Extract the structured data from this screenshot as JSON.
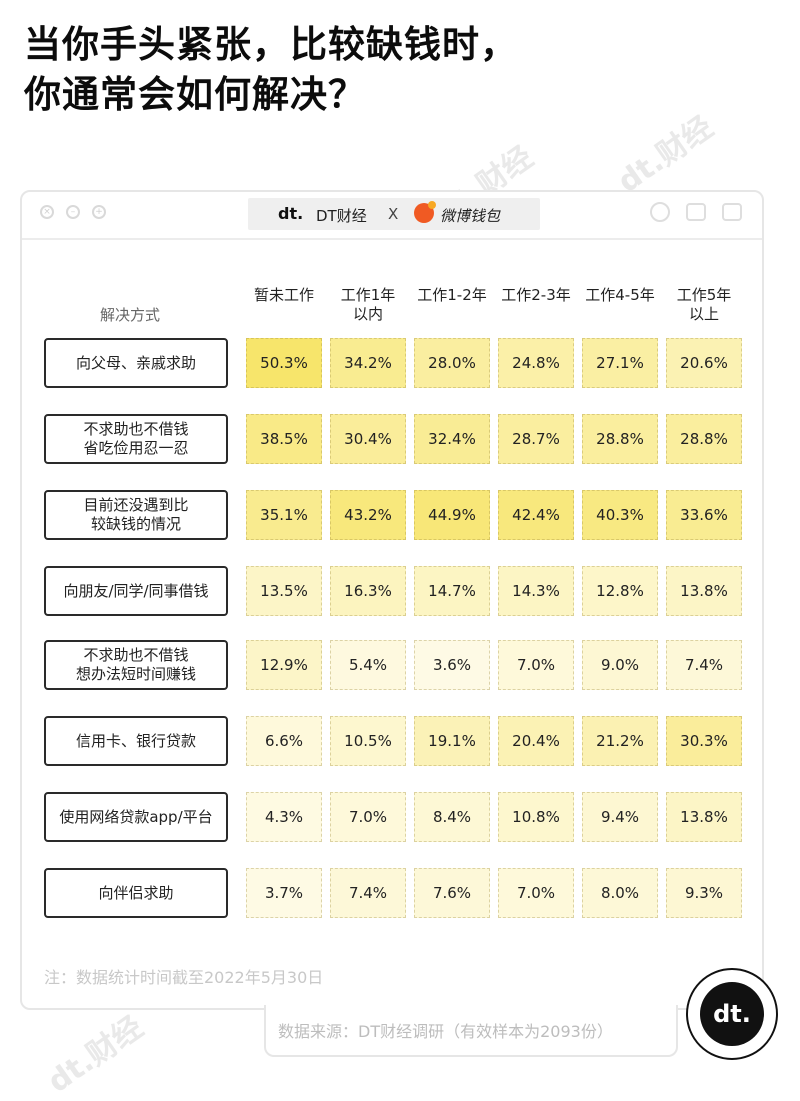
{
  "title": {
    "line1": "当你手头紧张，比较缺钱时，",
    "line2": "你通常会如何解决？"
  },
  "window": {
    "brand_dt_logo": "dt.",
    "brand_dt": "DT财经",
    "brand_x": "X",
    "brand_weibo": "微博钱包"
  },
  "watermarks": [
    "dt.财经",
    "dt.财经",
    "dt.财经",
    "dt.财经",
    "dt.财经",
    "dt.财经",
    "dt.财经",
    "dt.财经"
  ],
  "chart_data": {
    "type": "table",
    "row_header": "解决方式",
    "columns": [
      "暂未工作",
      "工作1年以内",
      "工作1-2年",
      "工作2-3年",
      "工作4-5年",
      "工作5年以上"
    ],
    "rows": [
      {
        "label": "向父母、亲戚求助",
        "values": [
          "50.3%",
          "34.2%",
          "28.0%",
          "24.8%",
          "27.1%",
          "20.6%"
        ]
      },
      {
        "label": "不求助也不借钱省吃俭用忍一忍",
        "values": [
          "38.5%",
          "30.4%",
          "32.4%",
          "28.7%",
          "28.8%",
          "28.8%"
        ]
      },
      {
        "label": "目前还没遇到比较缺钱的情况",
        "values": [
          "35.1%",
          "43.2%",
          "44.9%",
          "42.4%",
          "40.3%",
          "33.6%"
        ]
      },
      {
        "label": "向朋友/同学/同事借钱",
        "values": [
          "13.5%",
          "16.3%",
          "14.7%",
          "14.3%",
          "12.8%",
          "13.8%"
        ]
      },
      {
        "label": "不求助也不借钱想办法短时间赚钱",
        "values": [
          "12.9%",
          "5.4%",
          "3.6%",
          "7.0%",
          "9.0%",
          "7.4%"
        ]
      },
      {
        "label": "信用卡、银行贷款",
        "values": [
          "6.6%",
          "10.5%",
          "19.1%",
          "20.4%",
          "21.2%",
          "30.3%"
        ]
      },
      {
        "label": "使用网络贷款app/平台",
        "values": [
          "4.3%",
          "7.0%",
          "8.4%",
          "10.8%",
          "9.4%",
          "13.8%"
        ]
      },
      {
        "label": "向伴侣求助",
        "values": [
          "3.7%",
          "7.4%",
          "7.6%",
          "7.0%",
          "8.0%",
          "9.3%"
        ]
      }
    ],
    "color_scale": {
      "low": "#fffdf3",
      "high": "#f7e56b"
    }
  },
  "footer": {
    "note": "注：数据统计时间截至2022年5月30日",
    "source": "数据来源：DT财经调研（有效样本为2093份）",
    "badge": "dt."
  }
}
